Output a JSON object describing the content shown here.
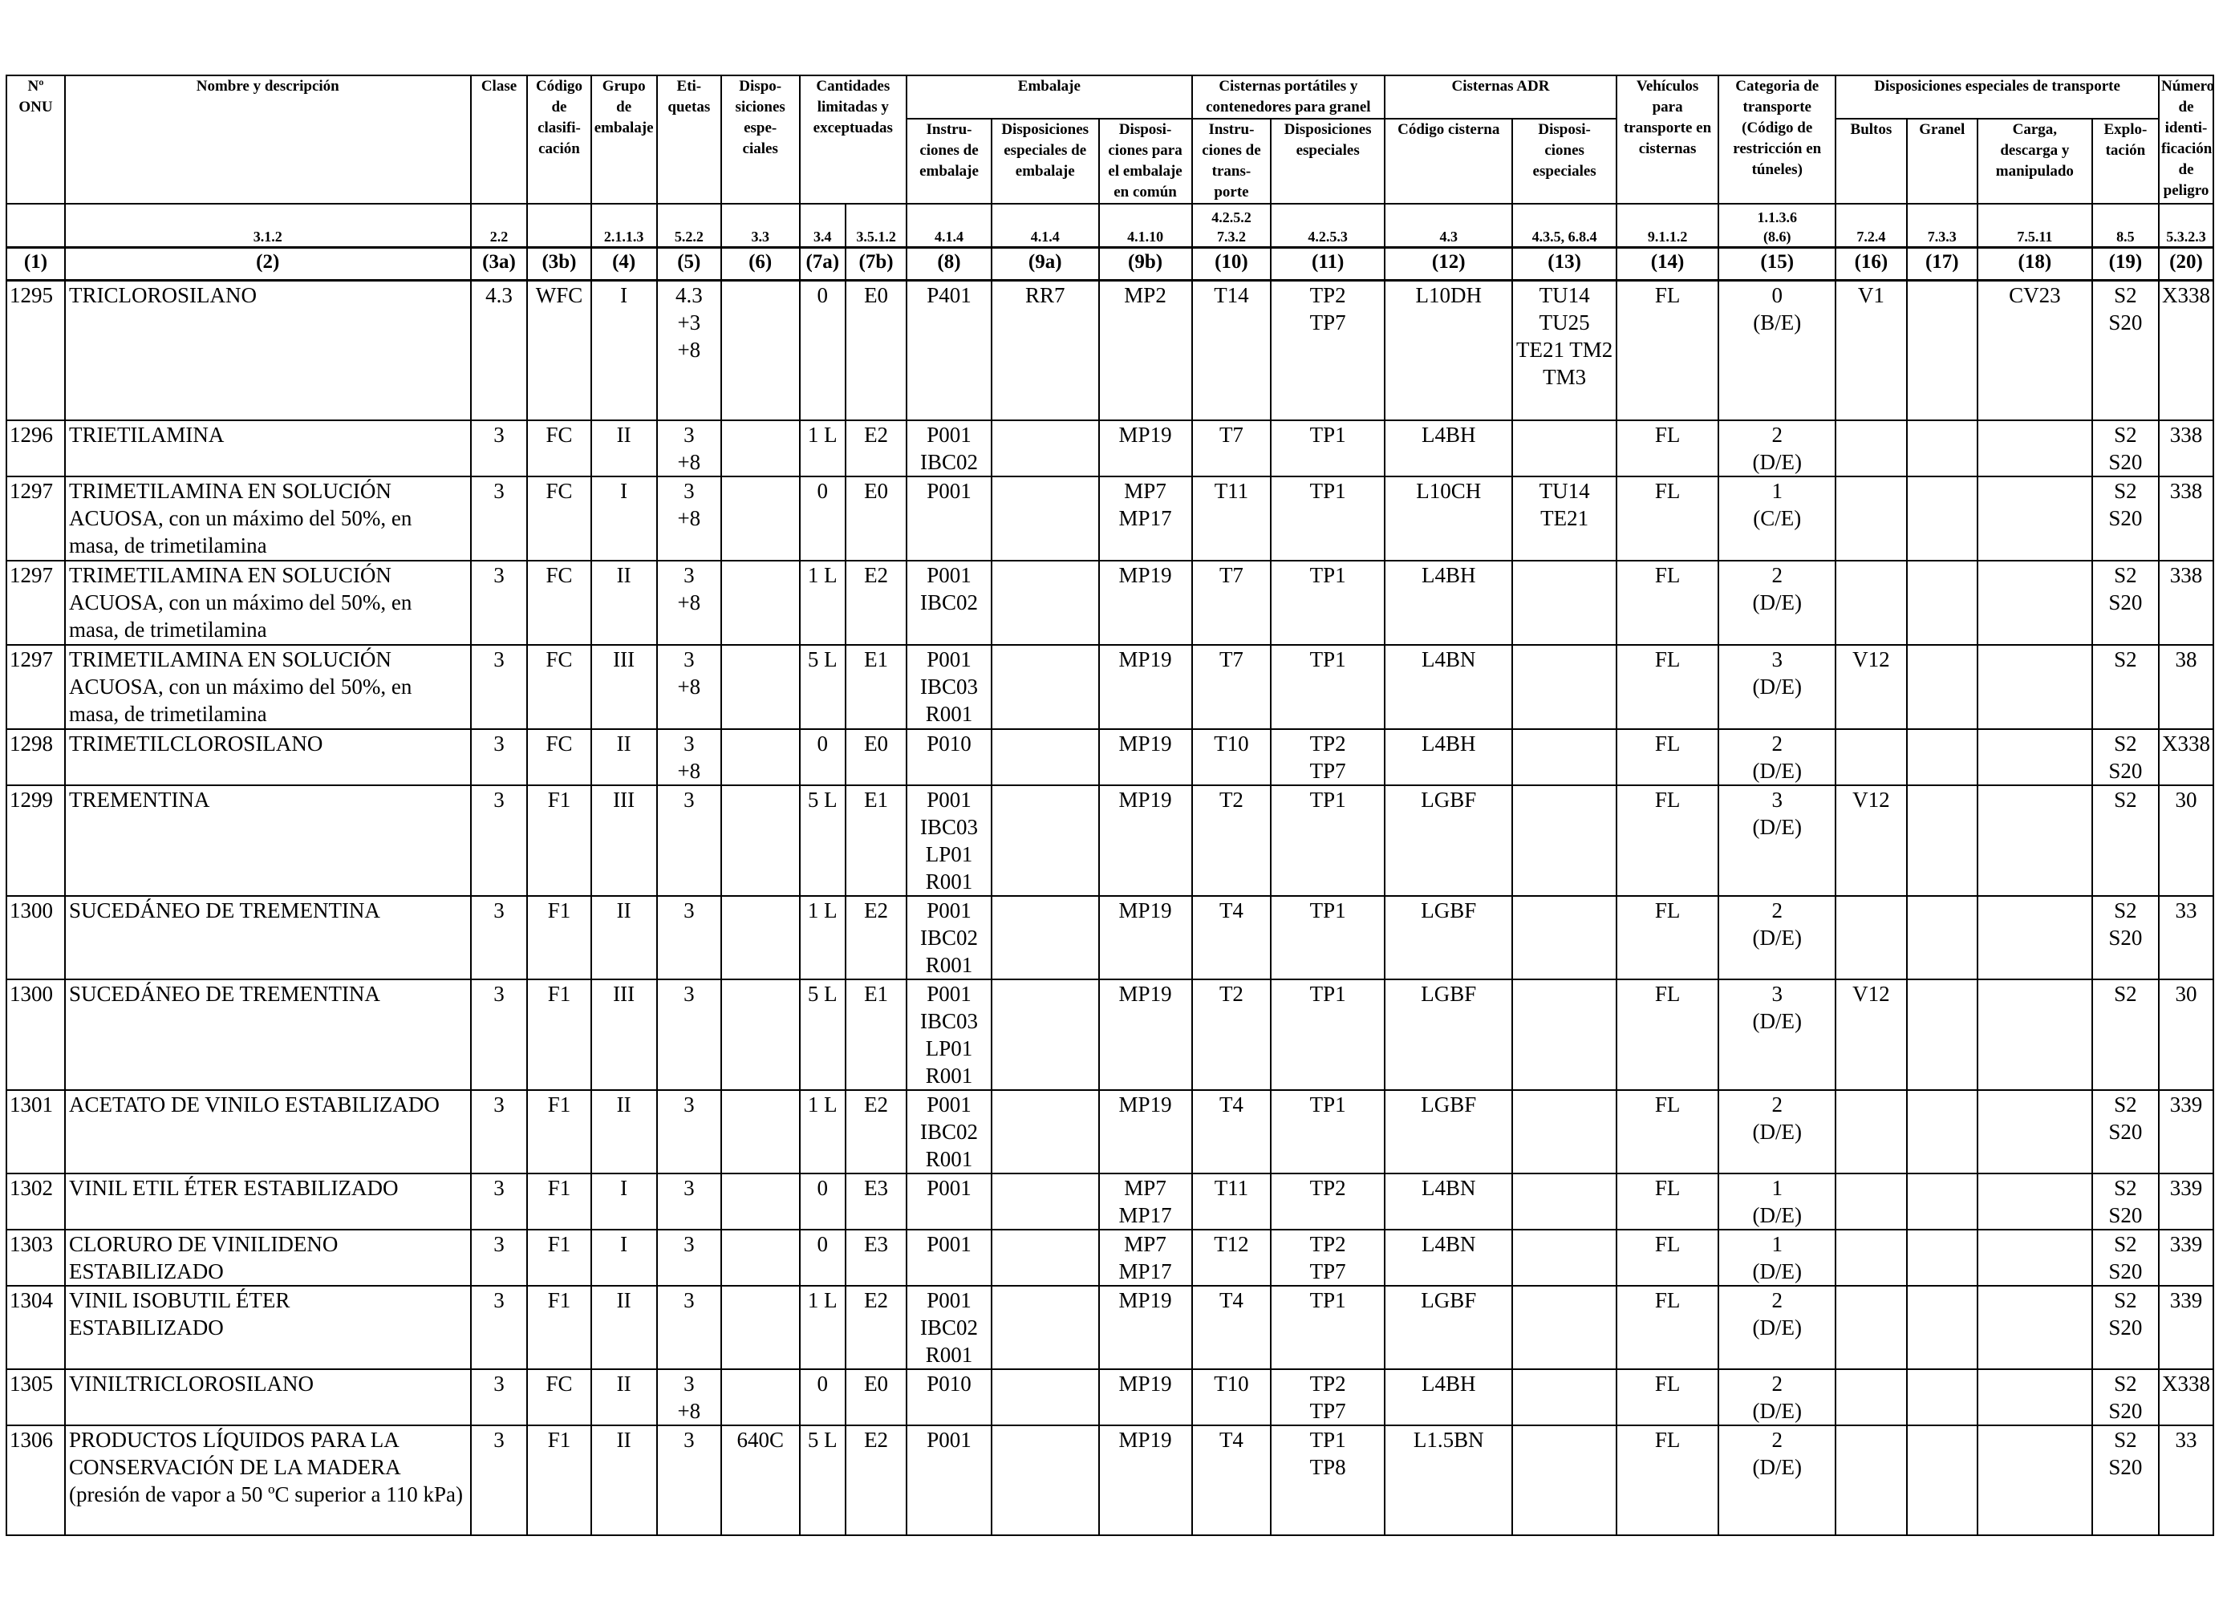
{
  "header": {
    "groups": {
      "cantidades": "Cantidades limitadas y exceptuadas",
      "embalaje": "Embalaje",
      "cisternas_portatiles": "Cisternas portátiles y contenedores para granel",
      "cisternas_adr": "Cisternas ADR",
      "disp_transporte": "Disposiciones especiales de transporte"
    },
    "cols": {
      "onu": "Nº\nONU",
      "nombre": "Nombre y descripción",
      "clase": "Clase",
      "codigo": "Código\nde clasifi-\ncación",
      "grupo": "Grupo de\nembalaje",
      "etiquetas": "Eti-\nquetas",
      "disposiciones": "Dispo-\nsiciones\nespe-\nciales",
      "instr_emb": "Instru-\nciones de\nembalaje",
      "disp_emb": "Disposiciones\nespeciales de\nembalaje",
      "disp_comun": "Disposi-\nciones para\nel embalaje\nen común",
      "instr_cist": "Instru-\nciones de\ntrans-\nporte",
      "disp_cist": "Disposiciones\nespeciales",
      "codigo_cist": "Código cisterna",
      "disp_cist_adr": "Disposi-\nciones\nespeciales",
      "vehiculos": "Vehículos\npara\ntransporte en\ncisternas",
      "categoria": "Categoria de\ntransporte\n(Código de\nrestricción en\ntúneles)",
      "bultos": "Bultos",
      "granel": "Granel",
      "carga": "Carga,\ndescarga y\nmanipulado",
      "explotacion": "Explo-\ntación",
      "numero_peligro": "Número\nde identi-\nficación\nde peligro"
    },
    "refs": [
      "",
      "3.1.2",
      "2.2",
      "",
      "2.1.1.3",
      "5.2.2",
      "3.3",
      "3.4",
      "3.5.1.2",
      "4.1.4",
      "4.1.4",
      "4.1.10",
      "4.2.5.2\n7.3.2",
      "4.2.5.3",
      "4.3",
      "4.3.5, 6.8.4",
      "9.1.1.2",
      "1.1.3.6\n(8.6)",
      "7.2.4",
      "7.3.3",
      "7.5.11",
      "8.5",
      "5.3.2.3"
    ],
    "col_numbers": [
      "(1)",
      "(2)",
      "(3a)",
      "(3b)",
      "(4)",
      "(5)",
      "(6)",
      "(7a)",
      "(7b)",
      "(8)",
      "(9a)",
      "(9b)",
      "(10)",
      "(11)",
      "(12)",
      "(13)",
      "(14)",
      "(15)",
      "(16)",
      "(17)",
      "(18)",
      "(19)",
      "(20)"
    ]
  },
  "rows": [
    {
      "onu": "1295",
      "nombre": "TRICLOROSILANO",
      "clase": "4.3",
      "codigo": "WFC",
      "grupo": "I",
      "etiquetas": "4.3\n+3\n+8",
      "disp": "",
      "c7a": "0",
      "c7b": "E0",
      "c8": "P401",
      "c9a": "RR7",
      "c9b": "MP2",
      "c10": "T14",
      "c11": "TP2\nTP7",
      "c12": "L10DH",
      "c13": "TU14\nTU25\nTE21 TM2\nTM3",
      "c14": "FL",
      "c15": "0\n(B/E)",
      "c16": "V1",
      "c17": "",
      "c18": "CV23",
      "c19": "S2\nS20",
      "c20": "X338"
    },
    {
      "onu": "1296",
      "nombre": "TRIETILAMINA",
      "clase": "3",
      "codigo": "FC",
      "grupo": "II",
      "etiquetas": "3\n+8",
      "disp": "",
      "c7a": "1 L",
      "c7b": "E2",
      "c8": "P001\nIBC02",
      "c9a": "",
      "c9b": "MP19",
      "c10": "T7",
      "c11": "TP1",
      "c12": "L4BH",
      "c13": "",
      "c14": "FL",
      "c15": "2\n(D/E)",
      "c16": "",
      "c17": "",
      "c18": "",
      "c19": "S2\nS20",
      "c20": "338"
    },
    {
      "onu": "1297",
      "nombre": "TRIMETILAMINA EN SOLUCIÓN\nACUOSA, con un máximo del 50%, en\nmasa, de trimetilamina",
      "clase": "3",
      "codigo": "FC",
      "grupo": "I",
      "etiquetas": "3\n+8",
      "disp": "",
      "c7a": "0",
      "c7b": "E0",
      "c8": "P001",
      "c9a": "",
      "c9b": "MP7\nMP17",
      "c10": "T11",
      "c11": "TP1",
      "c12": "L10CH",
      "c13": "TU14\nTE21",
      "c14": "FL",
      "c15": "1\n(C/E)",
      "c16": "",
      "c17": "",
      "c18": "",
      "c19": "S2\nS20",
      "c20": "338"
    },
    {
      "onu": "1297",
      "nombre": "TRIMETILAMINA EN SOLUCIÓN\nACUOSA, con un máximo del 50%, en\nmasa, de trimetilamina",
      "clase": "3",
      "codigo": "FC",
      "grupo": "II",
      "etiquetas": "3\n+8",
      "disp": "",
      "c7a": "1 L",
      "c7b": "E2",
      "c8": "P001\nIBC02",
      "c9a": "",
      "c9b": "MP19",
      "c10": "T7",
      "c11": "TP1",
      "c12": "L4BH",
      "c13": "",
      "c14": "FL",
      "c15": "2\n(D/E)",
      "c16": "",
      "c17": "",
      "c18": "",
      "c19": "S2\nS20",
      "c20": "338"
    },
    {
      "onu": "1297",
      "nombre": "TRIMETILAMINA EN SOLUCIÓN\nACUOSA, con un máximo del 50%, en\nmasa, de trimetilamina",
      "clase": "3",
      "codigo": "FC",
      "grupo": "III",
      "etiquetas": "3\n+8",
      "disp": "",
      "c7a": "5 L",
      "c7b": "E1",
      "c8": "P001\nIBC03\nR001",
      "c9a": "",
      "c9b": "MP19",
      "c10": "T7",
      "c11": "TP1",
      "c12": "L4BN",
      "c13": "",
      "c14": "FL",
      "c15": "3\n(D/E)",
      "c16": "V12",
      "c17": "",
      "c18": "",
      "c19": "S2",
      "c20": "38"
    },
    {
      "onu": "1298",
      "nombre": "TRIMETILCLOROSILANO",
      "clase": "3",
      "codigo": "FC",
      "grupo": "II",
      "etiquetas": "3\n+8",
      "disp": "",
      "c7a": "0",
      "c7b": "E0",
      "c8": "P010",
      "c9a": "",
      "c9b": "MP19",
      "c10": "T10",
      "c11": "TP2\nTP7",
      "c12": "L4BH",
      "c13": "",
      "c14": "FL",
      "c15": "2\n(D/E)",
      "c16": "",
      "c17": "",
      "c18": "",
      "c19": "S2\nS20",
      "c20": "X338"
    },
    {
      "onu": "1299",
      "nombre": "TREMENTINA",
      "clase": "3",
      "codigo": "F1",
      "grupo": "III",
      "etiquetas": "3",
      "disp": "",
      "c7a": "5 L",
      "c7b": "E1",
      "c8": "P001\nIBC03\nLP01\nR001",
      "c9a": "",
      "c9b": "MP19",
      "c10": "T2",
      "c11": "TP1",
      "c12": "LGBF",
      "c13": "",
      "c14": "FL",
      "c15": "3\n(D/E)",
      "c16": "V12",
      "c17": "",
      "c18": "",
      "c19": "S2",
      "c20": "30"
    },
    {
      "onu": "1300",
      "nombre": "SUCEDÁNEO DE TREMENTINA",
      "clase": "3",
      "codigo": "F1",
      "grupo": "II",
      "etiquetas": "3",
      "disp": "",
      "c7a": "1 L",
      "c7b": "E2",
      "c8": "P001\nIBC02\nR001",
      "c9a": "",
      "c9b": "MP19",
      "c10": "T4",
      "c11": "TP1",
      "c12": "LGBF",
      "c13": "",
      "c14": "FL",
      "c15": "2\n(D/E)",
      "c16": "",
      "c17": "",
      "c18": "",
      "c19": "S2\nS20",
      "c20": "33"
    },
    {
      "onu": "1300",
      "nombre": "SUCEDÁNEO DE TREMENTINA",
      "clase": "3",
      "codigo": "F1",
      "grupo": "III",
      "etiquetas": "3",
      "disp": "",
      "c7a": "5 L",
      "c7b": "E1",
      "c8": "P001\nIBC03\nLP01\nR001",
      "c9a": "",
      "c9b": "MP19",
      "c10": "T2",
      "c11": "TP1",
      "c12": "LGBF",
      "c13": "",
      "c14": "FL",
      "c15": "3\n(D/E)",
      "c16": "V12",
      "c17": "",
      "c18": "",
      "c19": "S2",
      "c20": "30"
    },
    {
      "onu": "1301",
      "nombre": "ACETATO DE VINILO ESTABILIZADO",
      "clase": "3",
      "codigo": "F1",
      "grupo": "II",
      "etiquetas": "3",
      "disp": "",
      "c7a": "1 L",
      "c7b": "E2",
      "c8": "P001\nIBC02\nR001",
      "c9a": "",
      "c9b": "MP19",
      "c10": "T4",
      "c11": "TP1",
      "c12": "LGBF",
      "c13": "",
      "c14": "FL",
      "c15": "2\n(D/E)",
      "c16": "",
      "c17": "",
      "c18": "",
      "c19": "S2\nS20",
      "c20": "339"
    },
    {
      "onu": "1302",
      "nombre": "VINIL ETIL ÉTER ESTABILIZADO",
      "clase": "3",
      "codigo": "F1",
      "grupo": "I",
      "etiquetas": "3",
      "disp": "",
      "c7a": "0",
      "c7b": "E3",
      "c8": "P001",
      "c9a": "",
      "c9b": "MP7\nMP17",
      "c10": "T11",
      "c11": "TP2",
      "c12": "L4BN",
      "c13": "",
      "c14": "FL",
      "c15": "1\n(D/E)",
      "c16": "",
      "c17": "",
      "c18": "",
      "c19": "S2\nS20",
      "c20": "339"
    },
    {
      "onu": "1303",
      "nombre": "CLORURO DE VINILIDENO\nESTABILIZADO",
      "clase": "3",
      "codigo": "F1",
      "grupo": "I",
      "etiquetas": "3",
      "disp": "",
      "c7a": "0",
      "c7b": "E3",
      "c8": "P001",
      "c9a": "",
      "c9b": "MP7\nMP17",
      "c10": "T12",
      "c11": "TP2\nTP7",
      "c12": "L4BN",
      "c13": "",
      "c14": "FL",
      "c15": "1\n(D/E)",
      "c16": "",
      "c17": "",
      "c18": "",
      "c19": "S2\nS20",
      "c20": "339"
    },
    {
      "onu": "1304",
      "nombre": "VINIL ISOBUTIL ÉTER\nESTABILIZADO",
      "clase": "3",
      "codigo": "F1",
      "grupo": "II",
      "etiquetas": "3",
      "disp": "",
      "c7a": "1 L",
      "c7b": "E2",
      "c8": "P001\nIBC02\nR001",
      "c9a": "",
      "c9b": "MP19",
      "c10": "T4",
      "c11": "TP1",
      "c12": "LGBF",
      "c13": "",
      "c14": "FL",
      "c15": "2\n(D/E)",
      "c16": "",
      "c17": "",
      "c18": "",
      "c19": "S2\nS20",
      "c20": "339"
    },
    {
      "onu": "1305",
      "nombre": "VINILTRICLOROSILANO",
      "clase": "3",
      "codigo": "FC",
      "grupo": "II",
      "etiquetas": "3\n+8",
      "disp": "",
      "c7a": "0",
      "c7b": "E0",
      "c8": "P010",
      "c9a": "",
      "c9b": "MP19",
      "c10": "T10",
      "c11": "TP2\nTP7",
      "c12": "L4BH",
      "c13": "",
      "c14": "FL",
      "c15": "2\n(D/E)",
      "c16": "",
      "c17": "",
      "c18": "",
      "c19": "S2\nS20",
      "c20": "X338"
    },
    {
      "onu": "1306",
      "nombre": "PRODUCTOS LÍQUIDOS PARA LA\nCONSERVACIÓN DE LA MADERA\n(presión de vapor a 50 ºC superior a 110 kPa)",
      "clase": "3",
      "codigo": "F1",
      "grupo": "II",
      "etiquetas": "3",
      "disp": "640C",
      "c7a": "5 L",
      "c7b": "E2",
      "c8": "P001",
      "c9a": "",
      "c9b": "MP19",
      "c10": "T4",
      "c11": "TP1\nTP8",
      "c12": "L1.5BN",
      "c13": "",
      "c14": "FL",
      "c15": "2\n(D/E)",
      "c16": "",
      "c17": "",
      "c18": "",
      "c19": "S2\nS20",
      "c20": "33"
    }
  ]
}
